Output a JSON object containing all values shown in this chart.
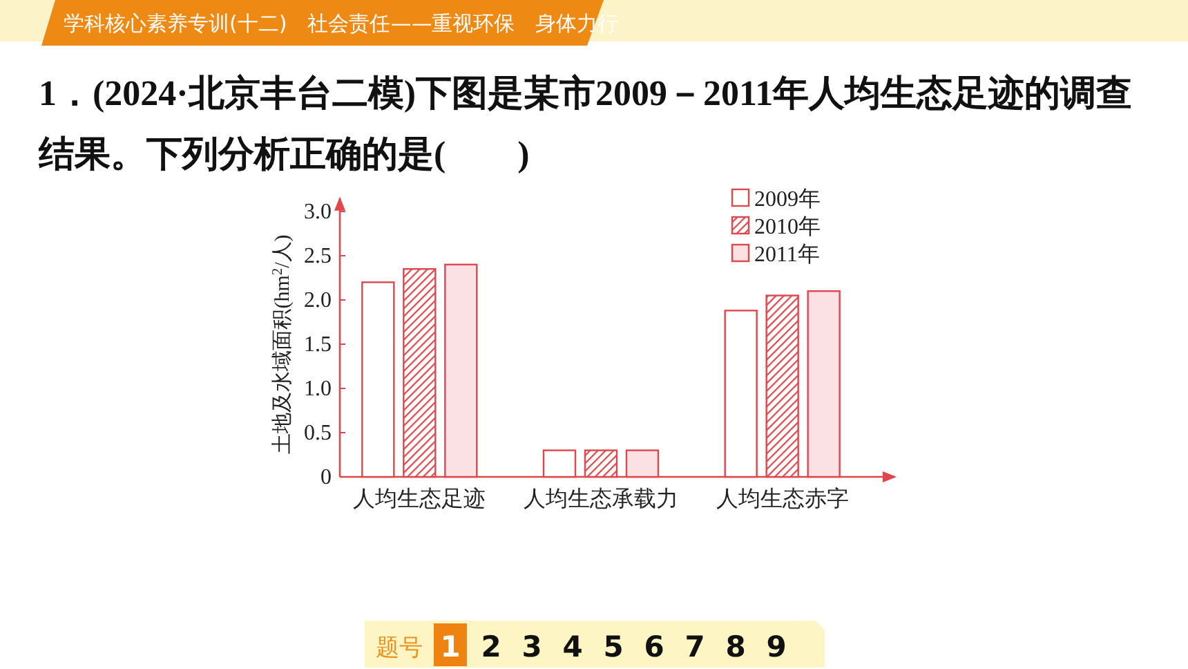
{
  "chart_data": {
    "type": "bar",
    "title": "**1．(2024·北京丰台二模)**下图是某市2009－2011年人均生态足迹的调查结果。下列分析正确的是(　　)",
    "subtitle": "学科核心素养专训(十二)　社会责任——重视环保　身体力行",
    "ylabel": "土地及水域面积(hm$^{2}$/人)",
    "categories": [
      "人均生态足迹",
      "人均生态承载力",
      "人均生态赤字"
    ],
    "series": [
      {
        "name": "2009年",
        "color": "#ffffff",
        "values": [
          2.2,
          0.3,
          1.88
        ]
      },
      {
        "name": "2010年",
        "color": "#e0474c",
        "values": [
          2.35,
          0.3,
          2.05
        ]
      },
      {
        "name": "2011年",
        "color": "#fbe1e3",
        "values": [
          2.4,
          0.3,
          2.1
        ]
      }
    ],
    "ylim": [
      0,
      3.15
    ],
    "yticks": [
      0,
      0.5,
      {
        "value": 1,
        "label": "1.0"
      },
      1.5,
      {
        "value": 2,
        "label": "2.0"
      },
      2.5,
      {
        "value": 3,
        "label": "3.0"
      }
    ],
    "grid": false,
    "legend": "top right",
    "annotations": [
      "题号",
      "1",
      "2",
      "3",
      "4",
      "5",
      "6",
      "7",
      "8",
      "9"
    ]
  }
}
